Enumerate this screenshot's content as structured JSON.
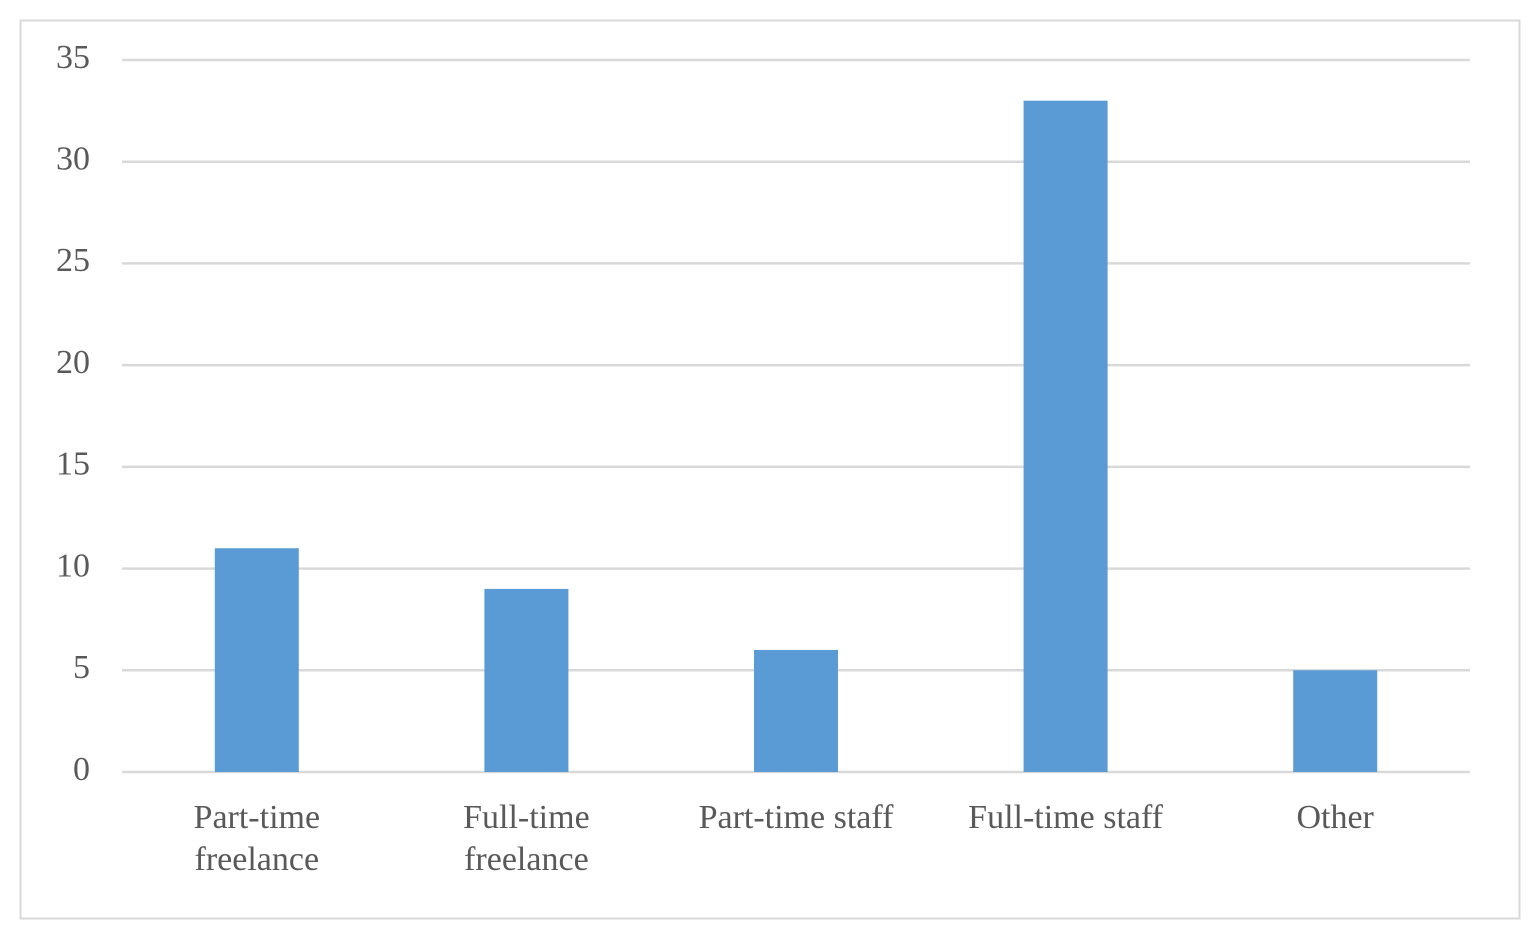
{
  "chart_data": {
    "type": "bar",
    "categories": [
      "Part-time freelance",
      "Full-time freelance",
      "Part-time staff",
      "Full-time staff",
      "Other"
    ],
    "values": [
      11,
      9,
      6,
      33,
      5
    ],
    "color": "#5b9bd5",
    "ylim": [
      0,
      35
    ],
    "yticks": [
      0,
      5,
      10,
      15,
      20,
      25,
      30,
      35
    ],
    "grid": true
  }
}
